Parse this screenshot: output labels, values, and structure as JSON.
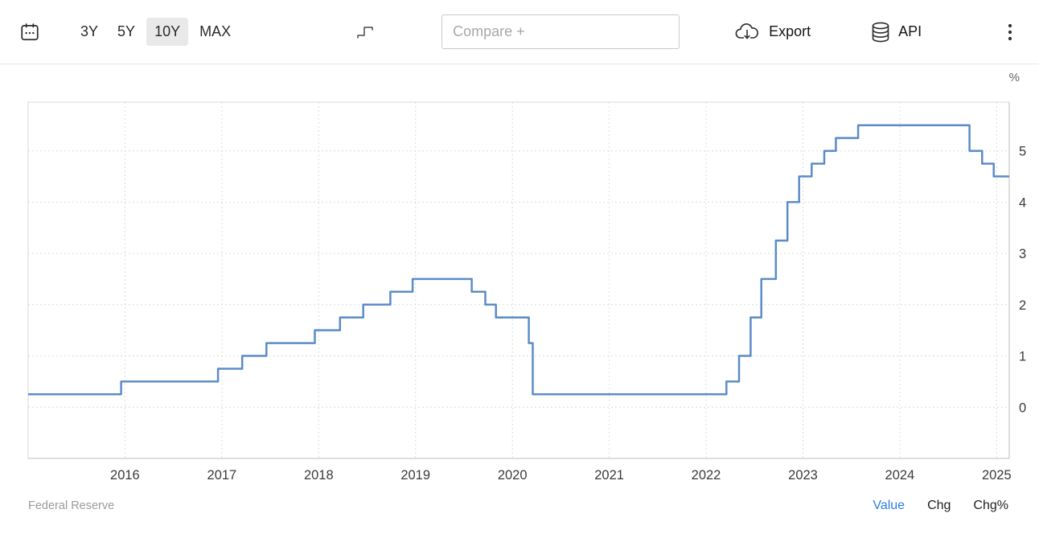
{
  "toolbar": {
    "ranges": [
      {
        "label": "3Y",
        "active": false
      },
      {
        "label": "5Y",
        "active": false
      },
      {
        "label": "10Y",
        "active": true
      },
      {
        "label": "MAX",
        "active": false
      }
    ],
    "compare_placeholder": "Compare +",
    "export_label": "Export",
    "api_label": "API",
    "icons": [
      "calendar-icon",
      "step-line-icon",
      "cloud-download-icon",
      "database-icon",
      "kebab-menu-icon"
    ]
  },
  "chart": {
    "unit_label": "%"
  },
  "footer": {
    "source": "Federal Reserve",
    "active_color": "#2a7de1",
    "tabs": [
      {
        "label": "Value",
        "active": true
      },
      {
        "label": "Chg",
        "active": false
      },
      {
        "label": "Chg%",
        "active": false
      }
    ]
  },
  "chart_data": {
    "type": "line",
    "line_style": "step-after",
    "title": "",
    "xlabel": "",
    "ylabel": "%",
    "grid": true,
    "axis_side": "right",
    "xlim": [
      2015.0,
      2025.13
    ],
    "ylim": [
      -1.0,
      5.95
    ],
    "x_ticks": [
      2016,
      2017,
      2018,
      2019,
      2020,
      2021,
      2022,
      2023,
      2024,
      2025
    ],
    "y_ticks": [
      0,
      1,
      2,
      3,
      4,
      5
    ],
    "series": [
      {
        "name": "Value",
        "color": "#5b8cc8",
        "points": [
          [
            2015.0,
            0.25
          ],
          [
            2015.96,
            0.5
          ],
          [
            2016.96,
            0.75
          ],
          [
            2017.21,
            1.0
          ],
          [
            2017.46,
            1.25
          ],
          [
            2017.96,
            1.5
          ],
          [
            2018.22,
            1.75
          ],
          [
            2018.46,
            2.0
          ],
          [
            2018.74,
            2.25
          ],
          [
            2018.97,
            2.5
          ],
          [
            2019.58,
            2.25
          ],
          [
            2019.72,
            2.0
          ],
          [
            2019.83,
            1.75
          ],
          [
            2020.17,
            1.25
          ],
          [
            2020.21,
            0.25
          ],
          [
            2022.21,
            0.5
          ],
          [
            2022.34,
            1.0
          ],
          [
            2022.46,
            1.75
          ],
          [
            2022.57,
            2.5
          ],
          [
            2022.72,
            3.25
          ],
          [
            2022.84,
            4.0
          ],
          [
            2022.96,
            4.5
          ],
          [
            2023.09,
            4.75
          ],
          [
            2023.22,
            5.0
          ],
          [
            2023.34,
            5.25
          ],
          [
            2023.57,
            5.5
          ],
          [
            2024.72,
            5.0
          ],
          [
            2024.85,
            4.75
          ],
          [
            2024.97,
            4.5
          ]
        ]
      }
    ]
  }
}
